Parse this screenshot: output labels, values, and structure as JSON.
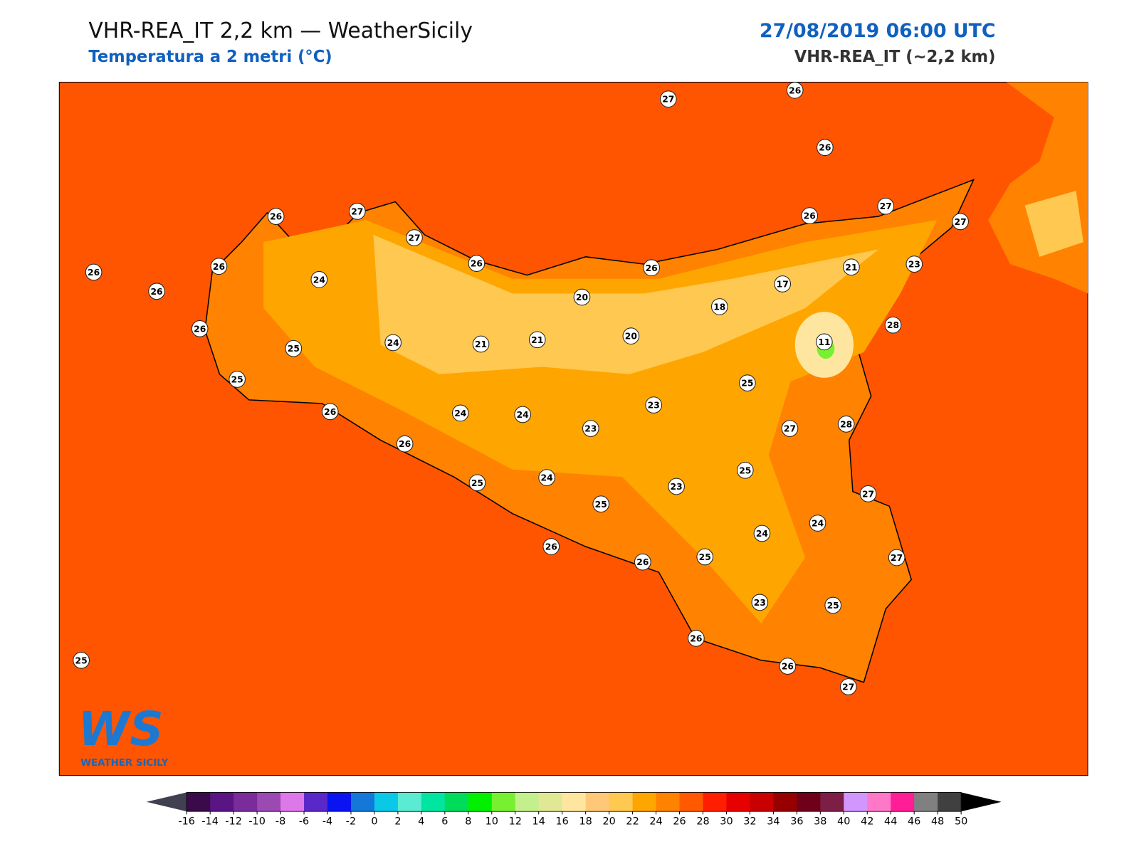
{
  "header": {
    "title": "VHR-REA_IT 2,2 km — WeatherSicily",
    "subtitle": "Temperatura a 2 metri (°C)",
    "date": "27/08/2019 06:00 UTC",
    "model": "VHR-REA_IT (~2,2 km)"
  },
  "logo": {
    "mark": "WS",
    "name": "WEATHER SICILY"
  },
  "stations": [
    27,
    26,
    26,
    26,
    27,
    27,
    26,
    26,
    26,
    24,
    26,
    26,
    26,
    27,
    27,
    21,
    23,
    17,
    18,
    20,
    20,
    21,
    21,
    24,
    25,
    26,
    25,
    28,
    11,
    25,
    23,
    26,
    24,
    24,
    23,
    27,
    28,
    26,
    25,
    25,
    24,
    23,
    25,
    27,
    24,
    24,
    26,
    26,
    25,
    27,
    23,
    25,
    26,
    26,
    27,
    25
  ],
  "colorbar": {
    "ticks": [
      -16,
      -14,
      -12,
      -10,
      -8,
      -6,
      -4,
      -2,
      0,
      2,
      4,
      6,
      8,
      10,
      12,
      14,
      16,
      18,
      20,
      22,
      24,
      26,
      28,
      30,
      32,
      34,
      36,
      38,
      40,
      42,
      44,
      46,
      48,
      50
    ],
    "colors": [
      "#3a0a4a",
      "#5a1483",
      "#7a2c9a",
      "#9a4ab0",
      "#dd78e8",
      "#5a28c8",
      "#0a14f0",
      "#1478d8",
      "#0ac8e6",
      "#5aebd2",
      "#00e6a0",
      "#00dc5a",
      "#00f000",
      "#78f032",
      "#c3f08c",
      "#e0e896",
      "#ffe6a0",
      "#ffc878",
      "#ffc850",
      "#ffa500",
      "#ff8200",
      "#ff5a00",
      "#ff1e00",
      "#e60000",
      "#c80000",
      "#960000",
      "#6e0019",
      "#7d1e46",
      "#d296ff",
      "#ff78c8",
      "#ff1e96",
      "#808080",
      "#404040"
    ],
    "under": "#404050",
    "over": "#000000"
  }
}
